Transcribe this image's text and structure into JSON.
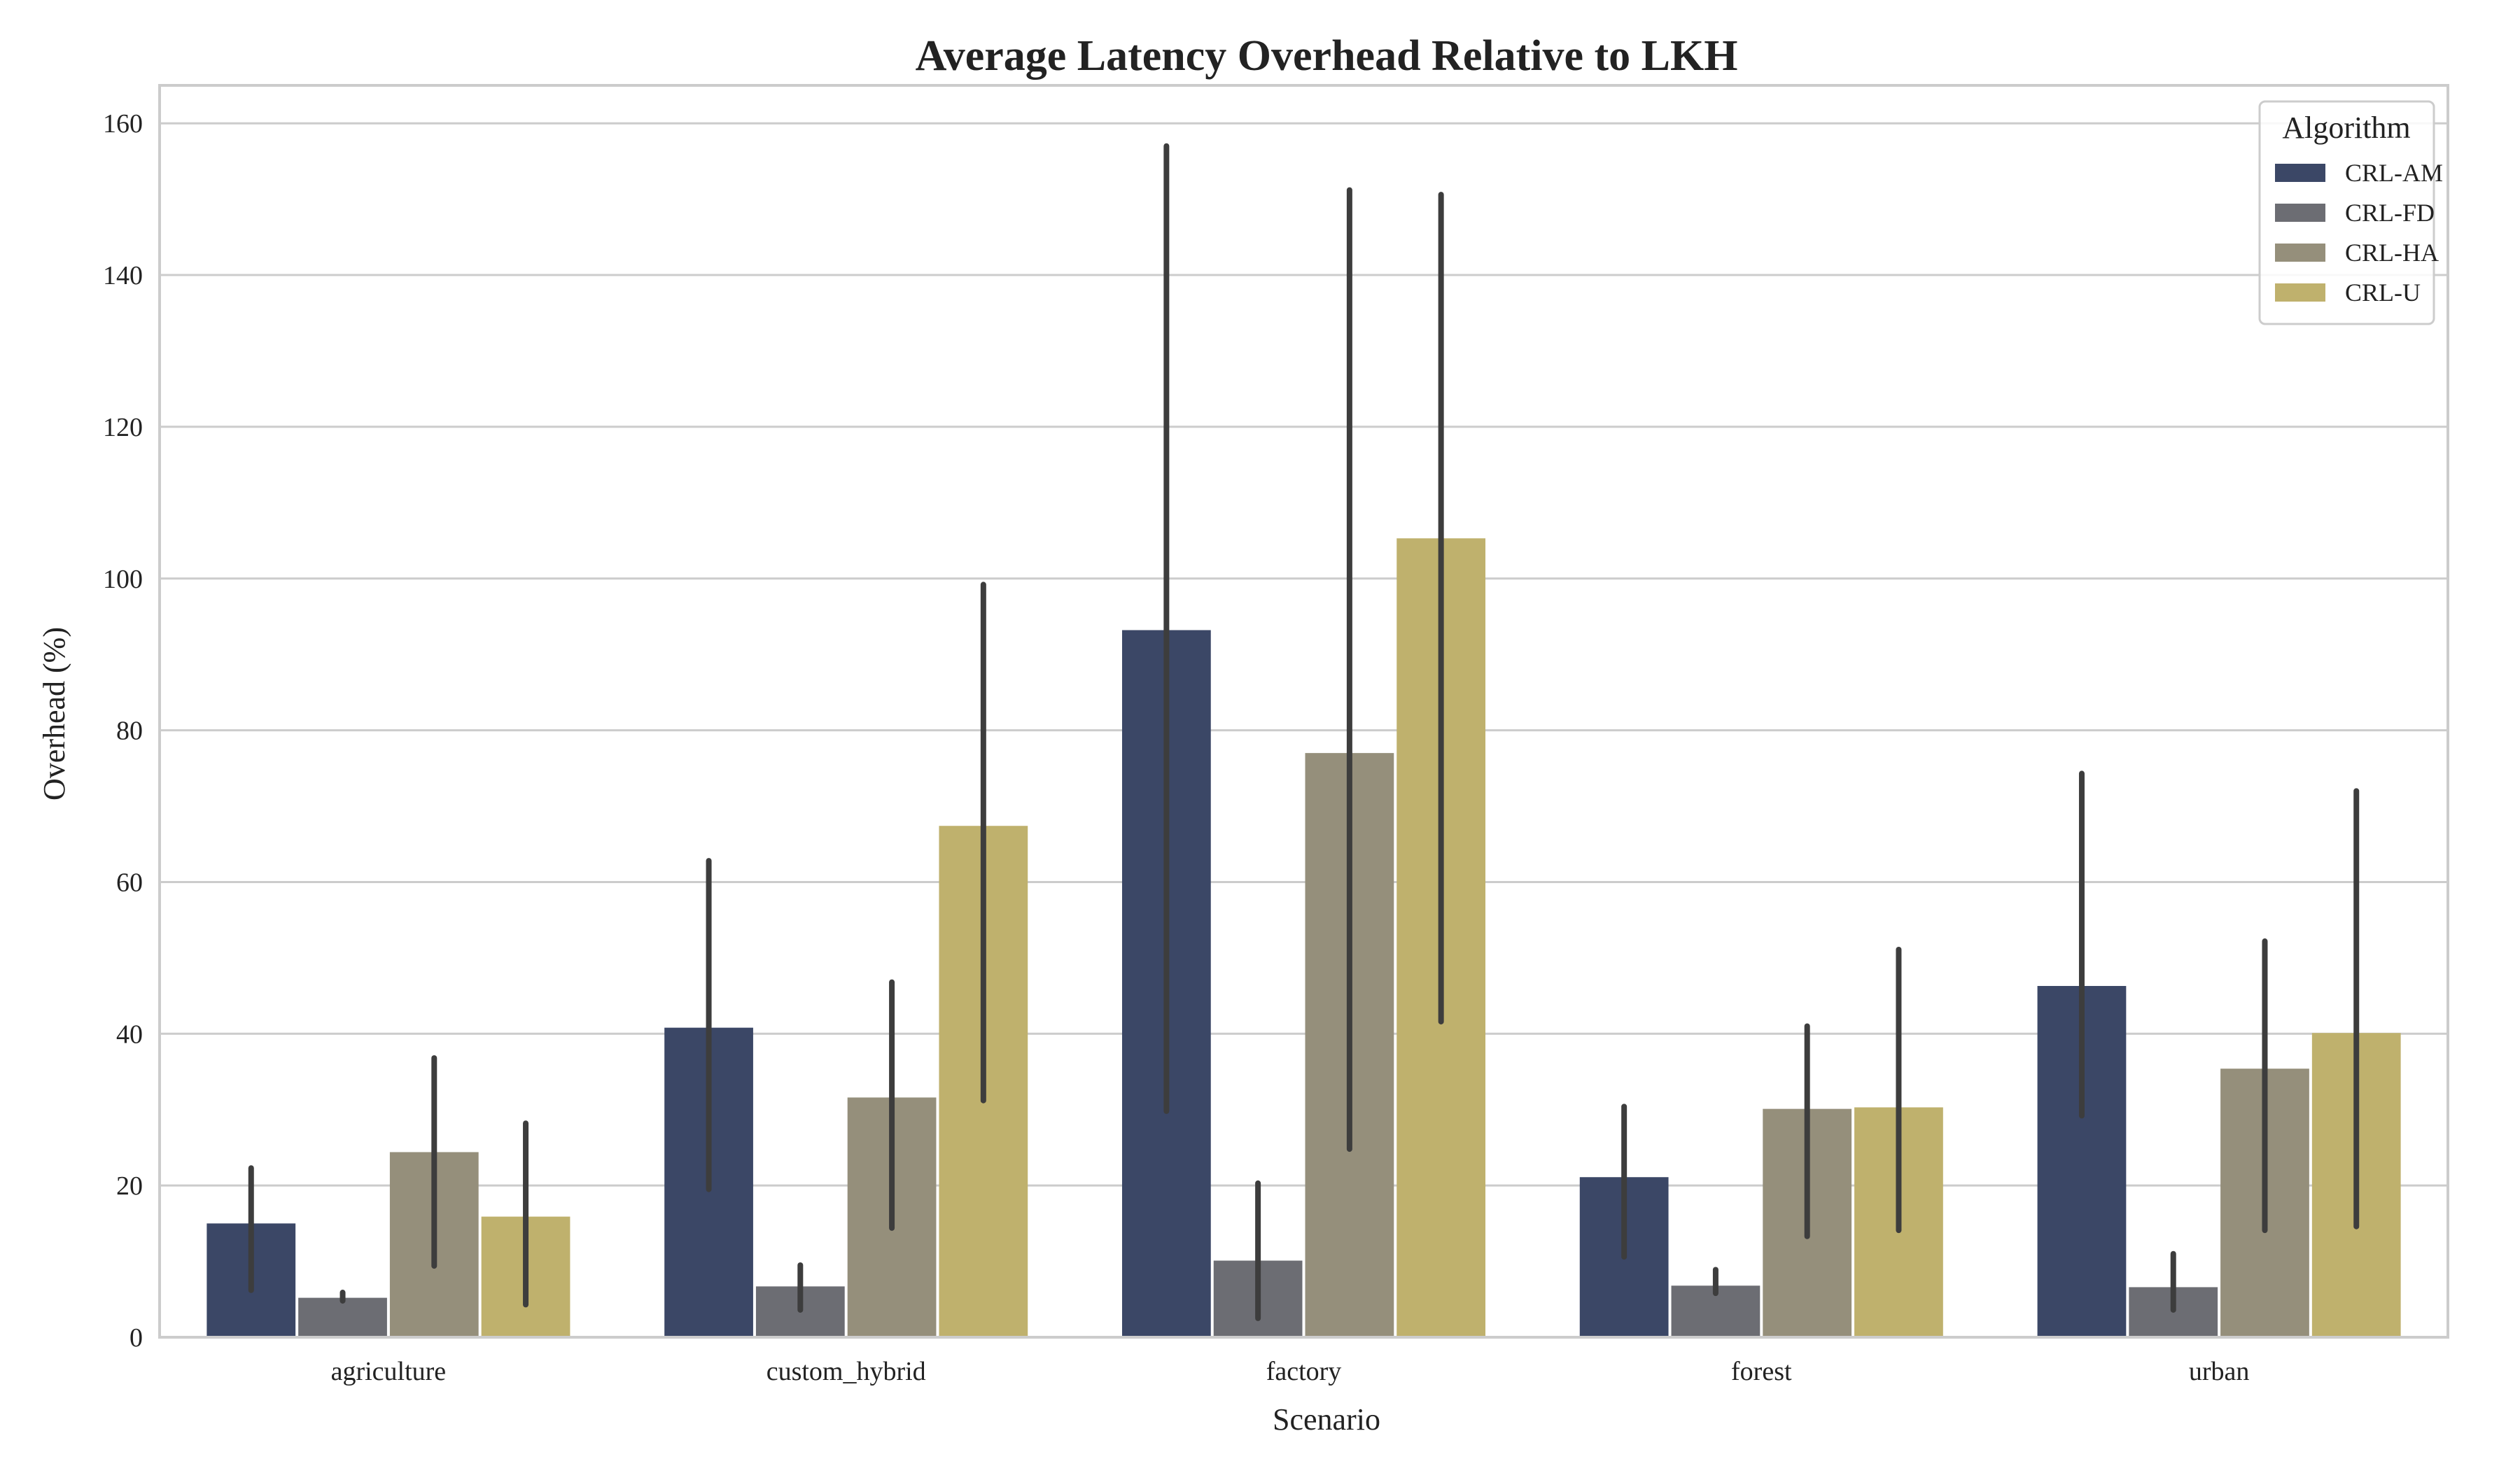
{
  "chart_data": {
    "type": "bar",
    "title": "Average Latency Overhead Relative to LKH",
    "xlabel": "Scenario",
    "ylabel": "Overhead (%)",
    "categories": [
      "agriculture",
      "custom_hybrid",
      "factory",
      "forest",
      "urban"
    ],
    "ylim": [
      0,
      165
    ],
    "yticks": [
      0,
      20,
      40,
      60,
      80,
      100,
      120,
      140,
      160
    ],
    "grid": true,
    "legend": {
      "title": "Algorithm",
      "position": "top-right"
    },
    "series": [
      {
        "name": "CRL-AM",
        "color": "#3b4766",
        "values": [
          15.0,
          40.8,
          93.2,
          21.1,
          46.3
        ],
        "error_low": [
          6.2,
          19.5,
          29.8,
          10.6,
          29.2
        ],
        "error_high": [
          22.3,
          62.8,
          157.0,
          30.4,
          74.3
        ]
      },
      {
        "name": "CRL-FD",
        "color": "#6c6d73",
        "values": [
          5.2,
          6.7,
          10.1,
          6.8,
          6.6
        ],
        "error_low": [
          4.8,
          3.6,
          2.5,
          5.8,
          3.6
        ],
        "error_high": [
          5.9,
          9.5,
          20.3,
          8.9,
          11.0
        ]
      },
      {
        "name": "CRL-HA",
        "color": "#958f7b",
        "values": [
          24.4,
          31.6,
          77.0,
          30.1,
          35.4
        ],
        "error_low": [
          9.4,
          14.4,
          24.8,
          13.3,
          14.1
        ],
        "error_high": [
          36.8,
          46.8,
          151.2,
          41.0,
          52.2
        ]
      },
      {
        "name": "CRL-U",
        "color": "#bfb16d",
        "values": [
          15.9,
          67.4,
          105.3,
          30.3,
          40.1
        ],
        "error_low": [
          4.3,
          31.2,
          41.6,
          14.1,
          14.6
        ],
        "error_high": [
          28.2,
          99.2,
          150.6,
          51.1,
          72.0
        ]
      }
    ]
  }
}
